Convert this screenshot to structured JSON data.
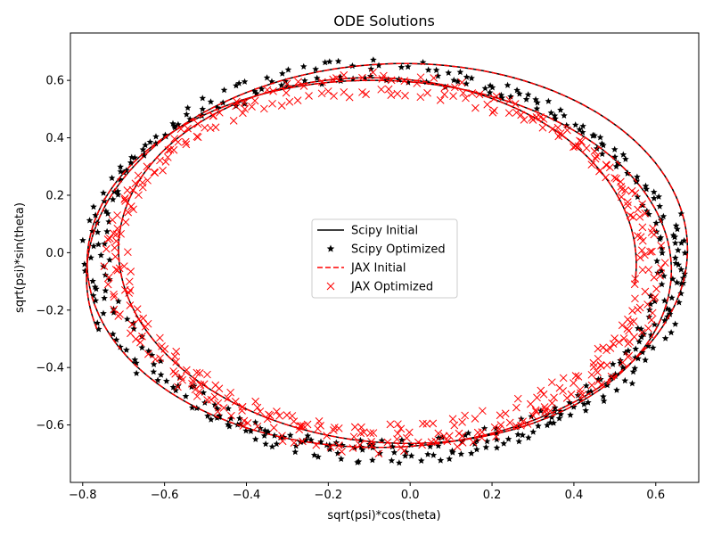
{
  "chart_data": {
    "type": "line",
    "title": "ODE Solutions",
    "xlabel": "sqrt(psi)*cos(theta)",
    "ylabel": "sqrt(psi)*sin(theta)",
    "xlim": [
      -0.83,
      0.705
    ],
    "ylim": [
      -0.8,
      0.765
    ],
    "xticks": [
      -0.8,
      -0.6,
      -0.4,
      -0.2,
      0.0,
      0.2,
      0.4,
      0.6
    ],
    "xtick_labels": [
      "−0.8",
      "−0.6",
      "−0.4",
      "−0.2",
      "0.0",
      "0.2",
      "0.4",
      "0.6"
    ],
    "yticks": [
      -0.6,
      -0.4,
      -0.2,
      0.0,
      0.2,
      0.4,
      0.6
    ],
    "ytick_labels": [
      "−0.6",
      "−0.4",
      "−0.2",
      "0.0",
      "0.2",
      "0.4",
      "0.6"
    ],
    "grid": false,
    "legend_position": "center",
    "series": [
      {
        "name": "Scipy Initial",
        "style": "solid-line",
        "color": "#000000",
        "spiral": {
          "start_radius": 0.64,
          "start_angle_deg": 352,
          "end_radius": 0.74,
          "end_angle_deg": 1280,
          "x_center": -0.06,
          "y_center": -0.03,
          "y_scale": 0.95
        }
      },
      {
        "name": "Scipy Optimized",
        "style": "star-marker",
        "color": "#000000",
        "spiral": {
          "start_radius": 0.7,
          "start_angle_deg": 233,
          "end_radius": 0.7,
          "end_angle_deg": 1093,
          "x_center": -0.06,
          "y_center": -0.03,
          "y_scale": 0.95
        }
      },
      {
        "name": "JAX Initial",
        "style": "dashed-line",
        "color": "#ff0000",
        "spiral": {
          "start_radius": 0.64,
          "start_angle_deg": 352,
          "end_radius": 0.74,
          "end_angle_deg": 1280,
          "x_center": -0.06,
          "y_center": -0.03,
          "y_scale": 0.95
        }
      },
      {
        "name": "JAX Optimized",
        "style": "x-marker",
        "color": "#ff0000",
        "spiral": {
          "start_radius": 0.66,
          "start_angle_deg": 220,
          "end_radius": 0.64,
          "end_angle_deg": 1060,
          "x_center": -0.06,
          "y_center": -0.03,
          "y_scale": 0.95
        }
      }
    ]
  }
}
